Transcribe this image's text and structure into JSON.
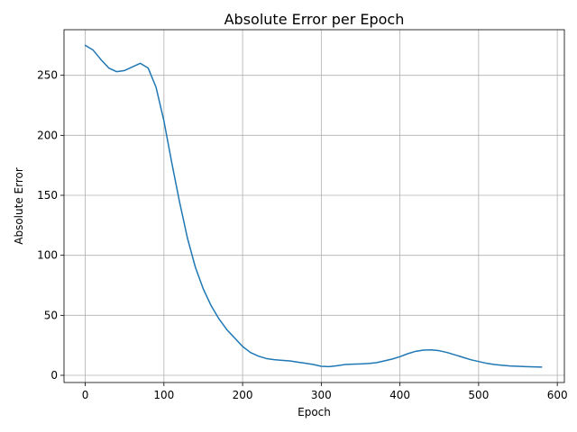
{
  "chart_data": {
    "type": "line",
    "title": "Absolute Error per Epoch",
    "xlabel": "Epoch",
    "ylabel": "Absolute Error",
    "xlim": [
      -27,
      609
    ],
    "ylim": [
      -6,
      288
    ],
    "xticks": [
      0,
      100,
      200,
      300,
      400,
      500,
      600
    ],
    "yticks": [
      0,
      50,
      100,
      150,
      200,
      250
    ],
    "grid": true,
    "series": [
      {
        "color": "#1f77b4",
        "x": [
          0,
          10,
          20,
          30,
          40,
          50,
          60,
          70,
          80,
          90,
          100,
          110,
          120,
          130,
          140,
          150,
          160,
          170,
          180,
          190,
          200,
          210,
          220,
          230,
          240,
          250,
          260,
          270,
          280,
          290,
          300,
          310,
          320,
          330,
          340,
          350,
          360,
          370,
          380,
          390,
          400,
          410,
          420,
          430,
          440,
          450,
          460,
          470,
          480,
          490,
          500,
          510,
          520,
          530,
          540,
          550,
          560,
          570,
          580
        ],
        "y": [
          275,
          271,
          263,
          256,
          253,
          254,
          257,
          260,
          256,
          240,
          212,
          177,
          144,
          114,
          90,
          72,
          58,
          47,
          38,
          31,
          24,
          19,
          16,
          14,
          13,
          12.5,
          12,
          11,
          10,
          9,
          7.5,
          7.2,
          8,
          9,
          9.3,
          9.5,
          9.8,
          10.5,
          12,
          13.5,
          15.5,
          18,
          20,
          21,
          21.2,
          20.5,
          19,
          17,
          15,
          13,
          11.5,
          10,
          9,
          8.3,
          7.8,
          7.5,
          7.2,
          7,
          6.8
        ]
      }
    ]
  }
}
